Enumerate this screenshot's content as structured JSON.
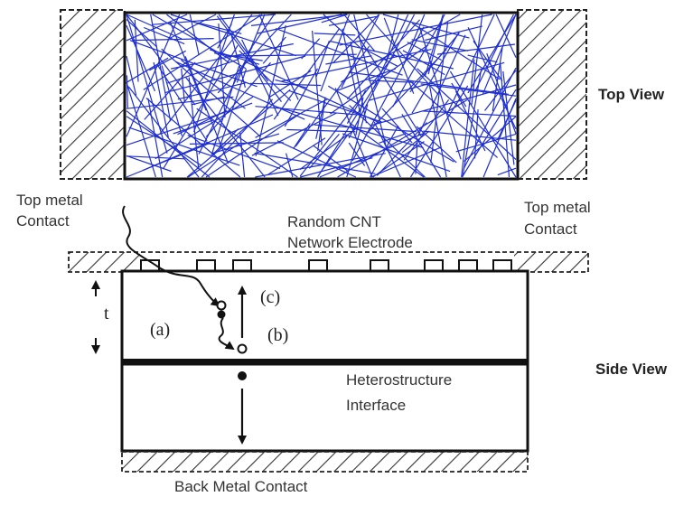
{
  "labels": {
    "top_view": "Top View",
    "side_view": "Side View",
    "top_metal_left_line1": "Top metal",
    "top_metal_left_line2": "Contact",
    "top_metal_right_line1": "Top metal",
    "top_metal_right_line2": "Contact",
    "cnt_line1": "Random CNT",
    "cnt_line2": "Network Electrode",
    "thickness": "t",
    "path_a": "(a)",
    "path_b": "(b)",
    "path_c": "(c)",
    "interface_line1": "Heterostructure",
    "interface_line2": "Interface",
    "back_contact": "Back Metal Contact"
  },
  "colors": {
    "cnt": "#1f2fd0",
    "line": "#111111",
    "hatch": "#333333",
    "text": "#333333"
  }
}
